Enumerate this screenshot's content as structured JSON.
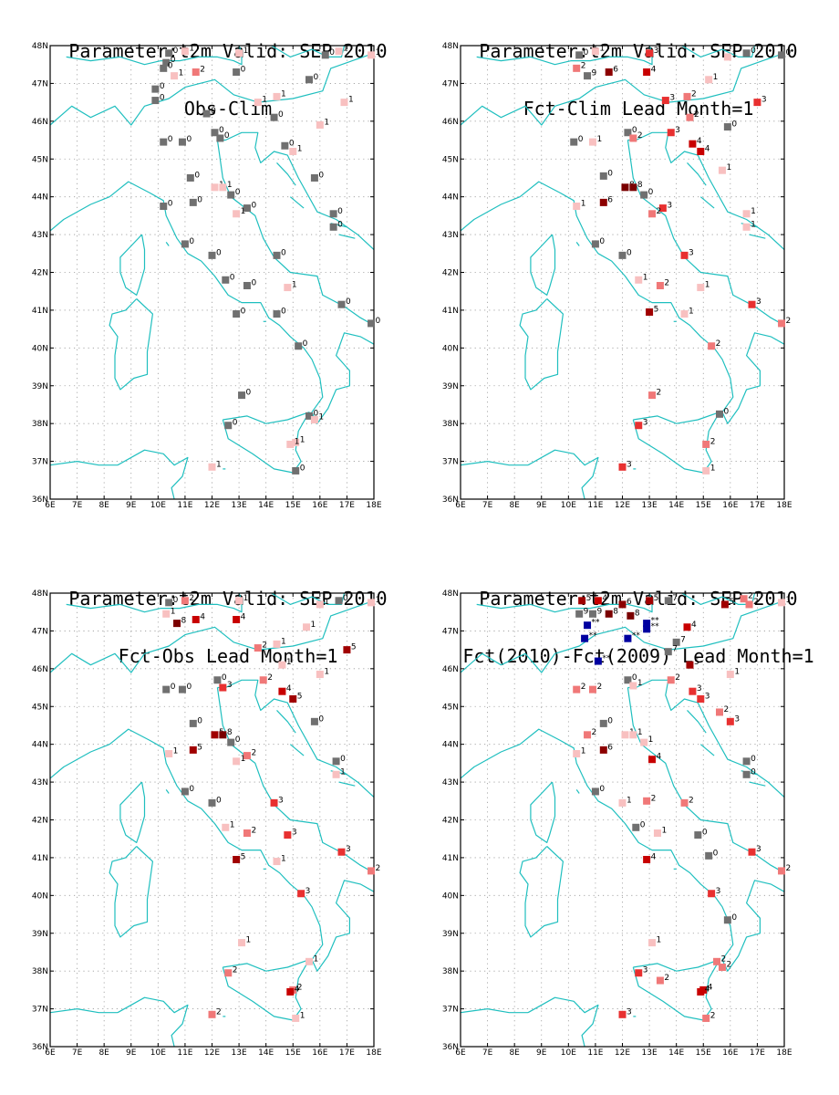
{
  "colors": {
    "coast": "#1fbfbf",
    "grid": "#9a9a9a",
    "neutral": "#707070",
    "scale": {
      "-9": "#00008c",
      "-8": "#00009a",
      "-7": "#0000a8",
      "-6": "#0000aa",
      "-5": "#0000b4",
      "-4": "#0a0ab0",
      "-3": "#3030e8",
      "-2": "#6c6cf0",
      "-1": "#c4c4f8",
      "0": "#707070",
      "1": "#f8c0c0",
      "2": "#f07878",
      "3": "#e83030",
      "4": "#c80000",
      "5": "#a00000",
      "6": "#8c0000",
      "8": "#7a0000",
      "**": "#0000a0"
    }
  },
  "axes": {
    "lon_min": 6,
    "lon_max": 18,
    "lat_min": 36,
    "lat_max": 48,
    "x_ticks": [
      "6E",
      "7E",
      "8E",
      "9E",
      "10E",
      "11E",
      "12E",
      "13E",
      "14E",
      "15E",
      "16E",
      "17E",
      "18E"
    ],
    "y_ticks": [
      "36N",
      "37N",
      "38N",
      "39N",
      "40N",
      "41N",
      "42N",
      "43N",
      "44N",
      "45N",
      "46N",
      "47N",
      "48N"
    ]
  },
  "panels": [
    {
      "title1": "Parameter:t2m Valid: SEP 2010",
      "title2": "Obs-Clim",
      "stations": [
        [
          10.4,
          47.8,
          "0"
        ],
        [
          11.0,
          47.85,
          "1"
        ],
        [
          13.0,
          47.8,
          "1"
        ],
        [
          16.2,
          47.75,
          "0"
        ],
        [
          16.7,
          47.85,
          "1"
        ],
        [
          17.9,
          47.75,
          "1"
        ],
        [
          10.3,
          47.55,
          "0"
        ],
        [
          10.2,
          47.4,
          "0"
        ],
        [
          10.6,
          47.2,
          "1"
        ],
        [
          11.4,
          47.3,
          "2"
        ],
        [
          12.9,
          47.3,
          "0"
        ],
        [
          15.6,
          47.1,
          "0"
        ],
        [
          9.9,
          46.85,
          "0"
        ],
        [
          9.9,
          46.55,
          "0"
        ],
        [
          13.7,
          46.5,
          "1"
        ],
        [
          14.4,
          46.65,
          "1"
        ],
        [
          16.9,
          46.5,
          "1"
        ],
        [
          11.8,
          46.2,
          "0"
        ],
        [
          14.3,
          46.1,
          "0"
        ],
        [
          16.0,
          45.9,
          "1"
        ],
        [
          12.1,
          45.7,
          "0"
        ],
        [
          12.3,
          45.55,
          "0"
        ],
        [
          10.2,
          45.45,
          "0"
        ],
        [
          10.9,
          45.45,
          "0"
        ],
        [
          14.7,
          45.35,
          "0"
        ],
        [
          15.0,
          45.2,
          "1"
        ],
        [
          11.2,
          44.5,
          "0"
        ],
        [
          15.8,
          44.5,
          "0"
        ],
        [
          12.1,
          44.25,
          "1"
        ],
        [
          12.4,
          44.25,
          "1"
        ],
        [
          12.7,
          44.05,
          "0"
        ],
        [
          11.3,
          43.85,
          "0"
        ],
        [
          10.2,
          43.75,
          "0"
        ],
        [
          13.3,
          43.7,
          "0"
        ],
        [
          12.9,
          43.55,
          "1"
        ],
        [
          16.5,
          43.55,
          "0"
        ],
        [
          16.5,
          43.2,
          "0"
        ],
        [
          11.0,
          42.75,
          "0"
        ],
        [
          12.0,
          42.45,
          "0"
        ],
        [
          14.4,
          42.45,
          "0"
        ],
        [
          12.5,
          41.8,
          "0"
        ],
        [
          13.3,
          41.65,
          "0"
        ],
        [
          14.8,
          41.6,
          "1"
        ],
        [
          16.8,
          41.15,
          "0"
        ],
        [
          14.4,
          40.9,
          "0"
        ],
        [
          12.9,
          40.9,
          "0"
        ],
        [
          15.2,
          40.05,
          "0"
        ],
        [
          17.9,
          40.65,
          "0"
        ],
        [
          13.1,
          38.75,
          "0"
        ],
        [
          15.6,
          38.2,
          "0"
        ],
        [
          15.8,
          38.1,
          "1"
        ],
        [
          12.6,
          37.95,
          "0"
        ],
        [
          15.1,
          37.5,
          "1"
        ],
        [
          14.9,
          37.45,
          "1"
        ],
        [
          12.0,
          36.85,
          "1"
        ],
        [
          15.1,
          36.75,
          "0"
        ]
      ]
    },
    {
      "title1": "Parameter:t2m Valid: SEP 2010",
      "title2": "Fct-Clim Lead Month=1",
      "stations": [
        [
          10.4,
          47.75,
          "0"
        ],
        [
          11.0,
          47.85,
          "1"
        ],
        [
          13.0,
          47.8,
          "3"
        ],
        [
          15.9,
          47.7,
          "1"
        ],
        [
          16.6,
          47.8,
          "0"
        ],
        [
          17.9,
          47.75,
          "0"
        ],
        [
          10.3,
          47.4,
          "2"
        ],
        [
          10.7,
          47.2,
          "9"
        ],
        [
          11.5,
          47.3,
          "6"
        ],
        [
          12.9,
          47.3,
          "4"
        ],
        [
          15.2,
          47.1,
          "1"
        ],
        [
          13.6,
          46.55,
          "3"
        ],
        [
          14.4,
          46.65,
          "2"
        ],
        [
          17.0,
          46.5,
          "3"
        ],
        [
          14.5,
          46.1,
          "2"
        ],
        [
          15.9,
          45.85,
          "0"
        ],
        [
          12.2,
          45.7,
          "0"
        ],
        [
          12.4,
          45.55,
          "2"
        ],
        [
          13.8,
          45.7,
          "3"
        ],
        [
          10.2,
          45.45,
          "0"
        ],
        [
          10.9,
          45.45,
          "1"
        ],
        [
          14.6,
          45.4,
          "4"
        ],
        [
          14.9,
          45.2,
          "4"
        ],
        [
          11.3,
          44.55,
          "0"
        ],
        [
          15.7,
          44.7,
          "1"
        ],
        [
          12.1,
          44.25,
          "8"
        ],
        [
          12.4,
          44.25,
          "8"
        ],
        [
          12.8,
          44.05,
          "0"
        ],
        [
          11.3,
          43.85,
          "6"
        ],
        [
          10.3,
          43.75,
          "1"
        ],
        [
          13.5,
          43.7,
          "3"
        ],
        [
          13.1,
          43.55,
          "2"
        ],
        [
          16.6,
          43.55,
          "1"
        ],
        [
          16.6,
          43.2,
          "1"
        ],
        [
          11.0,
          42.75,
          "0"
        ],
        [
          12.0,
          42.45,
          "0"
        ],
        [
          14.3,
          42.45,
          "3"
        ],
        [
          12.6,
          41.8,
          "1"
        ],
        [
          13.4,
          41.65,
          "2"
        ],
        [
          14.9,
          41.6,
          "1"
        ],
        [
          16.8,
          41.15,
          "3"
        ],
        [
          14.3,
          40.9,
          "1"
        ],
        [
          13.0,
          40.95,
          "5"
        ],
        [
          15.3,
          40.05,
          "2"
        ],
        [
          17.9,
          40.65,
          "2"
        ],
        [
          13.1,
          38.75,
          "2"
        ],
        [
          15.6,
          38.25,
          "0"
        ],
        [
          12.6,
          37.95,
          "3"
        ],
        [
          15.1,
          37.45,
          "2"
        ],
        [
          12.0,
          36.85,
          "3"
        ],
        [
          15.1,
          36.75,
          "1"
        ]
      ]
    },
    {
      "title1": "Parameter:t2m Valid: SEP 2010",
      "title2": "Fct-Obs Lead Month=1",
      "stations": [
        [
          10.4,
          47.75,
          "0"
        ],
        [
          11.0,
          47.8,
          "2"
        ],
        [
          13.0,
          47.8,
          "1"
        ],
        [
          16.0,
          47.7,
          "1"
        ],
        [
          16.7,
          47.8,
          "0"
        ],
        [
          17.9,
          47.75,
          "1"
        ],
        [
          10.3,
          47.45,
          "1"
        ],
        [
          10.7,
          47.2,
          "8"
        ],
        [
          11.4,
          47.3,
          "4"
        ],
        [
          12.9,
          47.3,
          "4"
        ],
        [
          15.5,
          47.1,
          "1"
        ],
        [
          13.7,
          46.55,
          "2"
        ],
        [
          14.4,
          46.65,
          "1"
        ],
        [
          17.0,
          46.5,
          "5"
        ],
        [
          14.6,
          46.1,
          "1"
        ],
        [
          16.0,
          45.85,
          "1"
        ],
        [
          12.2,
          45.7,
          "0"
        ],
        [
          12.4,
          45.5,
          "3"
        ],
        [
          13.9,
          45.7,
          "2"
        ],
        [
          10.3,
          45.45,
          "0"
        ],
        [
          10.9,
          45.45,
          "0"
        ],
        [
          14.6,
          45.4,
          "4"
        ],
        [
          15.0,
          45.2,
          "5"
        ],
        [
          11.3,
          44.55,
          "0"
        ],
        [
          15.8,
          44.6,
          "0"
        ],
        [
          12.1,
          44.25,
          "5"
        ],
        [
          12.4,
          44.25,
          "8"
        ],
        [
          12.7,
          44.05,
          "0"
        ],
        [
          11.3,
          43.85,
          "5"
        ],
        [
          10.4,
          43.75,
          "1"
        ],
        [
          13.3,
          43.7,
          "2"
        ],
        [
          12.9,
          43.55,
          "1"
        ],
        [
          16.6,
          43.55,
          "0"
        ],
        [
          16.6,
          43.2,
          "1"
        ],
        [
          11.0,
          42.75,
          "0"
        ],
        [
          12.0,
          42.45,
          "0"
        ],
        [
          14.3,
          42.45,
          "3"
        ],
        [
          12.5,
          41.8,
          "1"
        ],
        [
          13.3,
          41.65,
          "2"
        ],
        [
          14.8,
          41.6,
          "3"
        ],
        [
          16.8,
          41.15,
          "3"
        ],
        [
          14.4,
          40.9,
          "1"
        ],
        [
          12.9,
          40.95,
          "5"
        ],
        [
          15.3,
          40.05,
          "3"
        ],
        [
          17.9,
          40.65,
          "2"
        ],
        [
          13.1,
          38.75,
          "1"
        ],
        [
          15.6,
          38.25,
          "1"
        ],
        [
          12.6,
          37.95,
          "2"
        ],
        [
          15.0,
          37.5,
          "2"
        ],
        [
          14.9,
          37.45,
          "4"
        ],
        [
          12.0,
          36.85,
          "2"
        ],
        [
          15.1,
          36.75,
          "1"
        ]
      ]
    },
    {
      "title1": "Parameter:t2m Valid: SEP 2010",
      "title2": "Fct(2010)-Fct(2009) Lead Month=1",
      "stations": [
        [
          10.5,
          47.8,
          "5"
        ],
        [
          11.1,
          47.8,
          "4"
        ],
        [
          12.0,
          47.7,
          "6"
        ],
        [
          13.0,
          47.8,
          "5"
        ],
        [
          13.7,
          47.8,
          "7"
        ],
        [
          15.8,
          47.7,
          "5"
        ],
        [
          16.5,
          47.85,
          "2"
        ],
        [
          16.7,
          47.7,
          "2"
        ],
        [
          17.9,
          47.75,
          "1"
        ],
        [
          10.4,
          47.45,
          "9"
        ],
        [
          10.9,
          47.45,
          "9"
        ],
        [
          11.5,
          47.45,
          "8"
        ],
        [
          12.3,
          47.4,
          "8"
        ],
        [
          12.9,
          47.2,
          "**"
        ],
        [
          12.9,
          47.05,
          "**"
        ],
        [
          10.7,
          47.15,
          "**"
        ],
        [
          10.6,
          46.8,
          "**"
        ],
        [
          12.2,
          46.8,
          "**"
        ],
        [
          14.4,
          47.1,
          "4"
        ],
        [
          14.0,
          46.7,
          "7"
        ],
        [
          13.7,
          46.45,
          "7"
        ],
        [
          11.1,
          46.2,
          "**"
        ],
        [
          14.5,
          46.1,
          "5"
        ],
        [
          16.0,
          45.85,
          "1"
        ],
        [
          12.2,
          45.7,
          "0"
        ],
        [
          12.4,
          45.55,
          "1"
        ],
        [
          13.8,
          45.7,
          "2"
        ],
        [
          10.3,
          45.45,
          "2"
        ],
        [
          10.9,
          45.45,
          "2"
        ],
        [
          14.6,
          45.4,
          "3"
        ],
        [
          14.9,
          45.2,
          "3"
        ],
        [
          15.6,
          44.85,
          "2"
        ],
        [
          16.0,
          44.6,
          "3"
        ],
        [
          11.3,
          44.55,
          "0"
        ],
        [
          10.7,
          44.25,
          "2"
        ],
        [
          12.1,
          44.25,
          "1"
        ],
        [
          12.4,
          44.25,
          "1"
        ],
        [
          12.8,
          44.05,
          "1"
        ],
        [
          11.3,
          43.85,
          "6"
        ],
        [
          10.3,
          43.75,
          "1"
        ],
        [
          13.1,
          43.6,
          "4"
        ],
        [
          16.6,
          43.55,
          "0"
        ],
        [
          16.6,
          43.2,
          "0"
        ],
        [
          11.0,
          42.75,
          "0"
        ],
        [
          12.0,
          42.45,
          "1"
        ],
        [
          12.9,
          42.5,
          "2"
        ],
        [
          14.3,
          42.45,
          "2"
        ],
        [
          12.5,
          41.8,
          "0"
        ],
        [
          13.3,
          41.65,
          "1"
        ],
        [
          14.8,
          41.6,
          "0"
        ],
        [
          16.8,
          41.15,
          "3"
        ],
        [
          15.2,
          41.05,
          "0"
        ],
        [
          12.9,
          40.95,
          "4"
        ],
        [
          15.3,
          40.05,
          "3"
        ],
        [
          17.9,
          40.65,
          "2"
        ],
        [
          15.9,
          39.35,
          "0"
        ],
        [
          13.1,
          38.75,
          "1"
        ],
        [
          15.5,
          38.25,
          "2"
        ],
        [
          15.7,
          38.1,
          "2"
        ],
        [
          12.6,
          37.95,
          "3"
        ],
        [
          13.4,
          37.75,
          "2"
        ],
        [
          15.0,
          37.5,
          "4"
        ],
        [
          14.9,
          37.45,
          "4"
        ],
        [
          12.0,
          36.85,
          "3"
        ],
        [
          15.1,
          36.75,
          "2"
        ]
      ]
    }
  ]
}
